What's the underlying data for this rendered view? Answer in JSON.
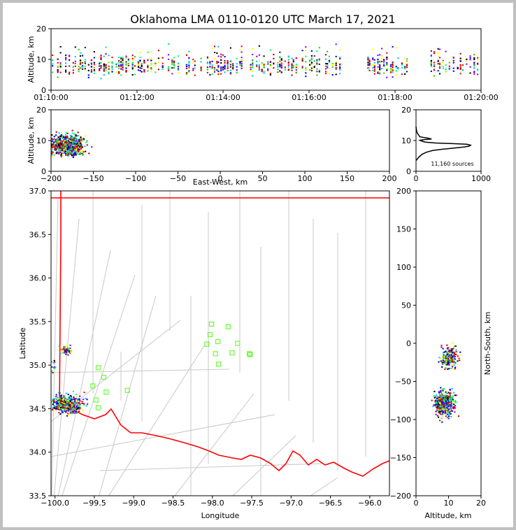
{
  "chart_data": {
    "title": "Oklahoma LMA 0110-0120 UTC March 17, 2021",
    "type": "scatter",
    "palette": [
      "#0000ff",
      "#8a00ff",
      "#00c0ff",
      "#00ff66",
      "#2bcc00",
      "#ffff00",
      "#ff0000",
      "#b00000",
      "#000000"
    ],
    "panels": {
      "time_altitude": {
        "type": "scatter",
        "ylabel": "Altitude, km",
        "ylim": [
          0,
          20
        ],
        "yticks": [
          "0",
          "10",
          "20"
        ],
        "xlim": [
          0,
          600
        ],
        "xticks": [
          {
            "t": 0,
            "label": "01:10:00"
          },
          {
            "t": 120,
            "label": "01:12:00"
          },
          {
            "t": 240,
            "label": "01:14:00"
          },
          {
            "t": 360,
            "label": "01:16:00"
          },
          {
            "t": 480,
            "label": "01:18:00"
          },
          {
            "t": 600,
            "label": "01:20:00"
          }
        ]
      },
      "ew_altitude": {
        "type": "scatter",
        "xlabel": "East-West, km",
        "ylabel": "Altitude, km",
        "xlim": [
          -200,
          200
        ],
        "ylim": [
          0,
          20
        ],
        "xticks": [
          "−200",
          "−150",
          "−100",
          "−50",
          "0",
          "50",
          "100",
          "150",
          "200"
        ],
        "yticks": [
          "0",
          "10",
          "20"
        ]
      },
      "histogram": {
        "type": "line",
        "xlim": [
          0,
          1000
        ],
        "ylim": [
          0,
          20
        ],
        "xticks": [
          "0",
          "1000"
        ],
        "yticks": [
          "0",
          "10",
          "20"
        ],
        "note": "11,160 sources",
        "x": [
          0,
          40,
          90,
          160,
          260,
          420,
          600,
          740,
          820,
          840,
          780,
          560,
          300,
          140,
          90,
          60,
          120,
          240,
          180,
          60,
          40,
          20,
          10,
          0
        ],
        "y": [
          3.5,
          4.5,
          5.5,
          6.2,
          6.8,
          7.2,
          7.6,
          7.9,
          8.2,
          8.5,
          8.8,
          9.0,
          9.2,
          9.5,
          9.8,
          10.1,
          10.3,
          10.5,
          10.8,
          11.2,
          11.8,
          12.4,
          13.0,
          14.5
        ]
      },
      "plan": {
        "type": "scatter",
        "xlabel": "Longitude",
        "ylabel": "Latitude",
        "xlim": [
          -100.05,
          -95.75
        ],
        "ylim": [
          33.5,
          37.0
        ],
        "xticks": [
          "−100.0",
          "−99.5",
          "−99.0",
          "−98.5",
          "−98.0",
          "−97.5",
          "−97.0",
          "−96.5",
          "−96.0"
        ],
        "yticks": [
          "33.5",
          "34.0",
          "34.5",
          "35.0",
          "35.5",
          "36.0",
          "36.5",
          "37.0"
        ],
        "state_border_color": "#ff0000",
        "county_color": "#c8c8c8",
        "station_color": "#66ff33",
        "stations": [
          {
            "lon": -98.01,
            "lat": 35.47
          },
          {
            "lon": -97.8,
            "lat": 35.44
          },
          {
            "lon": -98.03,
            "lat": 35.35
          },
          {
            "lon": -97.93,
            "lat": 35.27
          },
          {
            "lon": -98.07,
            "lat": 35.24
          },
          {
            "lon": -97.68,
            "lat": 35.25
          },
          {
            "lon": -97.96,
            "lat": 35.13
          },
          {
            "lon": -97.75,
            "lat": 35.14
          },
          {
            "lon": -97.53,
            "lat": 35.13
          },
          {
            "lon": -97.52,
            "lat": 35.12
          },
          {
            "lon": -97.92,
            "lat": 35.01
          },
          {
            "lon": -99.45,
            "lat": 34.97
          },
          {
            "lon": -99.38,
            "lat": 34.86
          },
          {
            "lon": -99.52,
            "lat": 34.76
          },
          {
            "lon": -99.08,
            "lat": 34.71
          },
          {
            "lon": -99.35,
            "lat": 34.69
          },
          {
            "lon": -99.48,
            "lat": 34.6
          },
          {
            "lon": -99.45,
            "lat": 34.51
          }
        ],
        "clusters": [
          {
            "lon": -99.86,
            "lat": 35.18,
            "sdlon": 0.04,
            "sdlat": 0.03,
            "n": 55
          },
          {
            "lon": -100.03,
            "lat": 35.0,
            "sdlon": 0.02,
            "sdlat": 0.04,
            "n": 15
          },
          {
            "lon": -99.85,
            "lat": 34.55,
            "sdlon": 0.1,
            "sdlat": 0.05,
            "n": 420
          }
        ]
      },
      "ns_altitude": {
        "type": "scatter",
        "xlabel": "Altitude, km",
        "ylabel": "North-South, km",
        "xlim": [
          0,
          20
        ],
        "ylim": [
          -200,
          200
        ],
        "xticks": [
          "0",
          "10",
          "20"
        ],
        "yticks": [
          "−200",
          "−150",
          "−100",
          "−50",
          "0",
          "50",
          "100",
          "150",
          "200"
        ],
        "clusters": [
          {
            "alt": 10.3,
            "ns": -18,
            "sdalt": 1.3,
            "sdns": 7,
            "n": 200
          },
          {
            "alt": 8.8,
            "ns": -80,
            "sdalt": 1.5,
            "sdns": 8,
            "n": 450
          }
        ]
      }
    }
  }
}
